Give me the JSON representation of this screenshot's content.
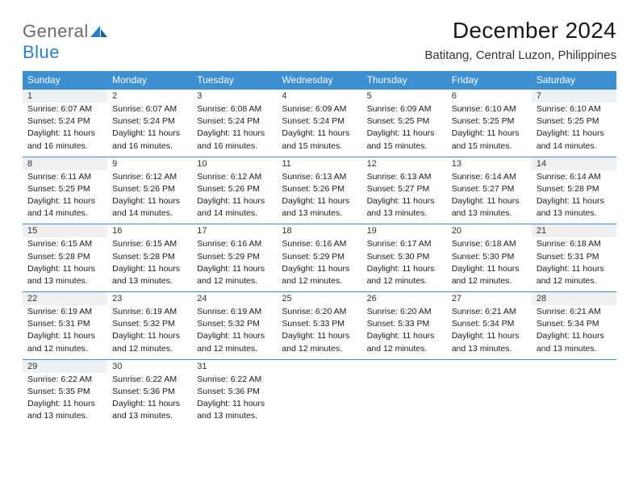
{
  "brand": {
    "word1": "General",
    "word2": "Blue"
  },
  "title": "December 2024",
  "location": "Batitang, Central Luzon, Philippines",
  "colors": {
    "header_bg": "#3c8fd1",
    "header_text": "#ffffff",
    "rule": "#3c8fd1",
    "alt_bg": "#eef0f1",
    "brand_gray": "#6a6a6a",
    "brand_blue": "#2a7fc9"
  },
  "font": {
    "body_size": 10.5,
    "daynum_size": 11,
    "dayhead_size": 12,
    "title_size": 28,
    "location_size": 15
  },
  "layout": {
    "columns": 7,
    "rows": 5,
    "cell_min_height": 82
  },
  "day_names": [
    "Sunday",
    "Monday",
    "Tuesday",
    "Wednesday",
    "Thursday",
    "Friday",
    "Saturday"
  ],
  "weeks": [
    [
      {
        "n": "1",
        "alt": true,
        "sunrise": "Sunrise: 6:07 AM",
        "sunset": "Sunset: 5:24 PM",
        "dl1": "Daylight: 11 hours",
        "dl2": "and 16 minutes."
      },
      {
        "n": "2",
        "alt": false,
        "sunrise": "Sunrise: 6:07 AM",
        "sunset": "Sunset: 5:24 PM",
        "dl1": "Daylight: 11 hours",
        "dl2": "and 16 minutes."
      },
      {
        "n": "3",
        "alt": false,
        "sunrise": "Sunrise: 6:08 AM",
        "sunset": "Sunset: 5:24 PM",
        "dl1": "Daylight: 11 hours",
        "dl2": "and 16 minutes."
      },
      {
        "n": "4",
        "alt": false,
        "sunrise": "Sunrise: 6:09 AM",
        "sunset": "Sunset: 5:24 PM",
        "dl1": "Daylight: 11 hours",
        "dl2": "and 15 minutes."
      },
      {
        "n": "5",
        "alt": false,
        "sunrise": "Sunrise: 6:09 AM",
        "sunset": "Sunset: 5:25 PM",
        "dl1": "Daylight: 11 hours",
        "dl2": "and 15 minutes."
      },
      {
        "n": "6",
        "alt": false,
        "sunrise": "Sunrise: 6:10 AM",
        "sunset": "Sunset: 5:25 PM",
        "dl1": "Daylight: 11 hours",
        "dl2": "and 15 minutes."
      },
      {
        "n": "7",
        "alt": true,
        "sunrise": "Sunrise: 6:10 AM",
        "sunset": "Sunset: 5:25 PM",
        "dl1": "Daylight: 11 hours",
        "dl2": "and 14 minutes."
      }
    ],
    [
      {
        "n": "8",
        "alt": true,
        "sunrise": "Sunrise: 6:11 AM",
        "sunset": "Sunset: 5:25 PM",
        "dl1": "Daylight: 11 hours",
        "dl2": "and 14 minutes."
      },
      {
        "n": "9",
        "alt": false,
        "sunrise": "Sunrise: 6:12 AM",
        "sunset": "Sunset: 5:26 PM",
        "dl1": "Daylight: 11 hours",
        "dl2": "and 14 minutes."
      },
      {
        "n": "10",
        "alt": false,
        "sunrise": "Sunrise: 6:12 AM",
        "sunset": "Sunset: 5:26 PM",
        "dl1": "Daylight: 11 hours",
        "dl2": "and 14 minutes."
      },
      {
        "n": "11",
        "alt": false,
        "sunrise": "Sunrise: 6:13 AM",
        "sunset": "Sunset: 5:26 PM",
        "dl1": "Daylight: 11 hours",
        "dl2": "and 13 minutes."
      },
      {
        "n": "12",
        "alt": false,
        "sunrise": "Sunrise: 6:13 AM",
        "sunset": "Sunset: 5:27 PM",
        "dl1": "Daylight: 11 hours",
        "dl2": "and 13 minutes."
      },
      {
        "n": "13",
        "alt": false,
        "sunrise": "Sunrise: 6:14 AM",
        "sunset": "Sunset: 5:27 PM",
        "dl1": "Daylight: 11 hours",
        "dl2": "and 13 minutes."
      },
      {
        "n": "14",
        "alt": true,
        "sunrise": "Sunrise: 6:14 AM",
        "sunset": "Sunset: 5:28 PM",
        "dl1": "Daylight: 11 hours",
        "dl2": "and 13 minutes."
      }
    ],
    [
      {
        "n": "15",
        "alt": true,
        "sunrise": "Sunrise: 6:15 AM",
        "sunset": "Sunset: 5:28 PM",
        "dl1": "Daylight: 11 hours",
        "dl2": "and 13 minutes."
      },
      {
        "n": "16",
        "alt": false,
        "sunrise": "Sunrise: 6:15 AM",
        "sunset": "Sunset: 5:28 PM",
        "dl1": "Daylight: 11 hours",
        "dl2": "and 13 minutes."
      },
      {
        "n": "17",
        "alt": false,
        "sunrise": "Sunrise: 6:16 AM",
        "sunset": "Sunset: 5:29 PM",
        "dl1": "Daylight: 11 hours",
        "dl2": "and 12 minutes."
      },
      {
        "n": "18",
        "alt": false,
        "sunrise": "Sunrise: 6:16 AM",
        "sunset": "Sunset: 5:29 PM",
        "dl1": "Daylight: 11 hours",
        "dl2": "and 12 minutes."
      },
      {
        "n": "19",
        "alt": false,
        "sunrise": "Sunrise: 6:17 AM",
        "sunset": "Sunset: 5:30 PM",
        "dl1": "Daylight: 11 hours",
        "dl2": "and 12 minutes."
      },
      {
        "n": "20",
        "alt": false,
        "sunrise": "Sunrise: 6:18 AM",
        "sunset": "Sunset: 5:30 PM",
        "dl1": "Daylight: 11 hours",
        "dl2": "and 12 minutes."
      },
      {
        "n": "21",
        "alt": true,
        "sunrise": "Sunrise: 6:18 AM",
        "sunset": "Sunset: 5:31 PM",
        "dl1": "Daylight: 11 hours",
        "dl2": "and 12 minutes."
      }
    ],
    [
      {
        "n": "22",
        "alt": true,
        "sunrise": "Sunrise: 6:19 AM",
        "sunset": "Sunset: 5:31 PM",
        "dl1": "Daylight: 11 hours",
        "dl2": "and 12 minutes."
      },
      {
        "n": "23",
        "alt": false,
        "sunrise": "Sunrise: 6:19 AM",
        "sunset": "Sunset: 5:32 PM",
        "dl1": "Daylight: 11 hours",
        "dl2": "and 12 minutes."
      },
      {
        "n": "24",
        "alt": false,
        "sunrise": "Sunrise: 6:19 AM",
        "sunset": "Sunset: 5:32 PM",
        "dl1": "Daylight: 11 hours",
        "dl2": "and 12 minutes."
      },
      {
        "n": "25",
        "alt": false,
        "sunrise": "Sunrise: 6:20 AM",
        "sunset": "Sunset: 5:33 PM",
        "dl1": "Daylight: 11 hours",
        "dl2": "and 12 minutes."
      },
      {
        "n": "26",
        "alt": false,
        "sunrise": "Sunrise: 6:20 AM",
        "sunset": "Sunset: 5:33 PM",
        "dl1": "Daylight: 11 hours",
        "dl2": "and 12 minutes."
      },
      {
        "n": "27",
        "alt": false,
        "sunrise": "Sunrise: 6:21 AM",
        "sunset": "Sunset: 5:34 PM",
        "dl1": "Daylight: 11 hours",
        "dl2": "and 13 minutes."
      },
      {
        "n": "28",
        "alt": true,
        "sunrise": "Sunrise: 6:21 AM",
        "sunset": "Sunset: 5:34 PM",
        "dl1": "Daylight: 11 hours",
        "dl2": "and 13 minutes."
      }
    ],
    [
      {
        "n": "29",
        "alt": true,
        "sunrise": "Sunrise: 6:22 AM",
        "sunset": "Sunset: 5:35 PM",
        "dl1": "Daylight: 11 hours",
        "dl2": "and 13 minutes."
      },
      {
        "n": "30",
        "alt": false,
        "sunrise": "Sunrise: 6:22 AM",
        "sunset": "Sunset: 5:36 PM",
        "dl1": "Daylight: 11 hours",
        "dl2": "and 13 minutes."
      },
      {
        "n": "31",
        "alt": false,
        "sunrise": "Sunrise: 6:22 AM",
        "sunset": "Sunset: 5:36 PM",
        "dl1": "Daylight: 11 hours",
        "dl2": "and 13 minutes."
      },
      null,
      null,
      null,
      null
    ]
  ]
}
